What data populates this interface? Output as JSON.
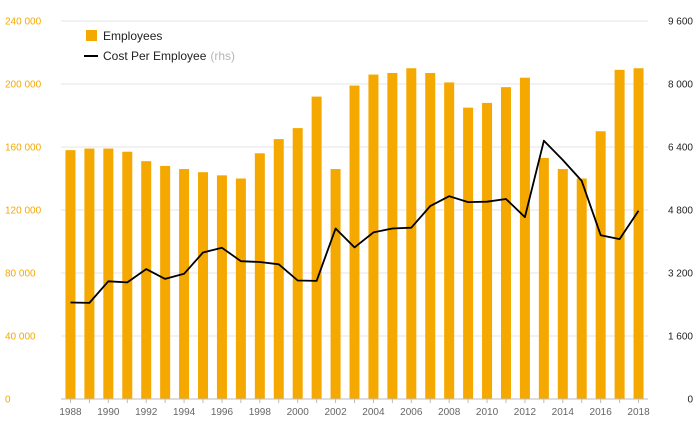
{
  "colors": {
    "bar": "#f5a800",
    "line": "#000000",
    "grid": "#e6e6e6"
  },
  "chart_data": {
    "type": "bar",
    "x": [
      1988,
      1989,
      1990,
      1991,
      1992,
      1993,
      1994,
      1995,
      1996,
      1997,
      1998,
      1999,
      2000,
      2001,
      2002,
      2003,
      2004,
      2005,
      2006,
      2007,
      2008,
      2009,
      2010,
      2011,
      2012,
      2013,
      2014,
      2015,
      2016,
      2017,
      2018
    ],
    "xticks": [
      "1988",
      "1990",
      "1992",
      "1994",
      "1996",
      "1998",
      "2000",
      "2002",
      "2004",
      "2006",
      "2008",
      "2010",
      "2012",
      "2014",
      "2016",
      "2018"
    ],
    "series": [
      {
        "name": "Employees",
        "type": "bar",
        "axis": "left",
        "values": [
          158000,
          159000,
          159000,
          157000,
          151000,
          148000,
          146000,
          144000,
          142000,
          140000,
          156000,
          165000,
          172000,
          192000,
          146000,
          199000,
          206000,
          207000,
          210000,
          207000,
          201000,
          185000,
          188000,
          198000,
          204000,
          153000,
          146000,
          140000,
          170000,
          209000,
          210000
        ]
      },
      {
        "name": "Cost Per Employee",
        "name_suffix": "(rhs)",
        "type": "line",
        "axis": "right",
        "values": [
          2450,
          2440,
          2990,
          2960,
          3300,
          3050,
          3180,
          3720,
          3840,
          3500,
          3480,
          3420,
          3010,
          3000,
          4330,
          3850,
          4230,
          4330,
          4350,
          4900,
          5150,
          5000,
          5010,
          5080,
          4620,
          6560,
          6070,
          5540,
          4160,
          4060,
          4780
        ]
      }
    ],
    "ylim_left": [
      0,
      240000
    ],
    "ylim_right": [
      0,
      9600
    ],
    "yticks_left": [
      {
        "value": 0,
        "label": "0"
      },
      {
        "value": 40000,
        "label": "40 000"
      },
      {
        "value": 80000,
        "label": "80 000"
      },
      {
        "value": 120000,
        "label": "120 000"
      },
      {
        "value": 160000,
        "label": "160 000"
      },
      {
        "value": 200000,
        "label": "200 000"
      },
      {
        "value": 240000,
        "label": "240 000"
      }
    ],
    "yticks_right": [
      {
        "value": 0,
        "label": "0"
      },
      {
        "value": 1600,
        "label": "1 600"
      },
      {
        "value": 3200,
        "label": "3 200"
      },
      {
        "value": 4800,
        "label": "4 800"
      },
      {
        "value": 6400,
        "label": "6 400"
      },
      {
        "value": 8000,
        "label": "8 000"
      },
      {
        "value": 9600,
        "label": "9 600"
      }
    ],
    "grid": true,
    "legend_position": "top-left"
  }
}
